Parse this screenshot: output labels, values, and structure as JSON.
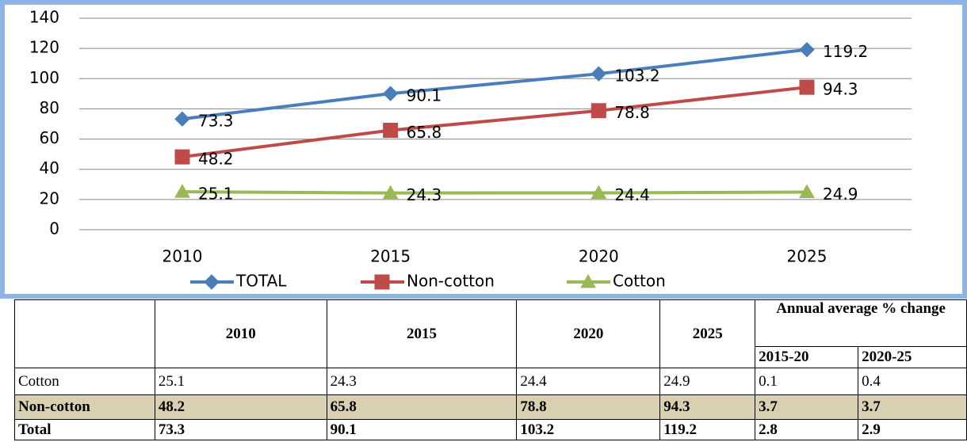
{
  "chart_data": {
    "type": "line",
    "categories": [
      "2010",
      "2015",
      "2020",
      "2025"
    ],
    "series": [
      {
        "name": "TOTAL",
        "color": "#4a7ebb",
        "marker": "diamond",
        "values": [
          73.3,
          90.1,
          103.2,
          119.2
        ]
      },
      {
        "name": "Non-cotton",
        "color": "#be4b48",
        "marker": "square",
        "values": [
          48.2,
          65.8,
          78.8,
          94.3
        ]
      },
      {
        "name": "Cotton",
        "color": "#98b954",
        "marker": "triangle",
        "values": [
          25.1,
          24.3,
          24.4,
          24.9
        ]
      }
    ],
    "ylim": [
      0,
      140
    ],
    "yticks": [
      0,
      20,
      40,
      60,
      80,
      100,
      120,
      140
    ],
    "grid": true,
    "legend": "bottom"
  },
  "table": {
    "columns": [
      "2010",
      "2015",
      "2020",
      "2025"
    ],
    "group": "Annual average % change",
    "subcolumns": [
      "2015-20",
      "2020-25"
    ],
    "rows": [
      {
        "label": "Cotton",
        "cells": [
          "25.1",
          "24.3",
          "24.4",
          "24.9",
          "0.1",
          "0.4"
        ]
      },
      {
        "label": "Non-cotton",
        "cells": [
          "48.2",
          "65.8",
          "78.8",
          "94.3",
          "3.7",
          "3.7"
        ]
      },
      {
        "label": "Total",
        "cells": [
          "73.3",
          "90.1",
          "103.2",
          "119.2",
          "2.8",
          "2.9"
        ]
      }
    ]
  }
}
